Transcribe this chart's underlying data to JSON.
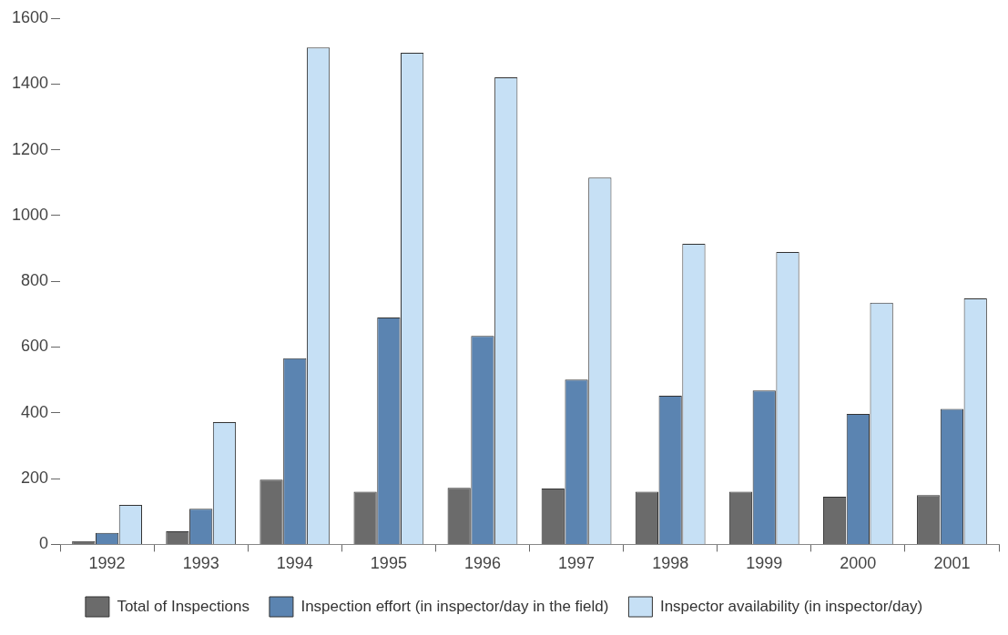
{
  "chart_data": {
    "type": "bar",
    "categories": [
      "1992",
      "1993",
      "1994",
      "1995",
      "1996",
      "1997",
      "1998",
      "1999",
      "2000",
      "2001"
    ],
    "series": [
      {
        "name": "Total of Inspections",
        "color": "#6b6b6b",
        "values": [
          10,
          40,
          197,
          160,
          172,
          170,
          160,
          160,
          145,
          150
        ]
      },
      {
        "name": "Inspection effort (in inspector/day in the field)",
        "color": "#5b84b1",
        "values": [
          35,
          108,
          566,
          690,
          634,
          501,
          452,
          468,
          397,
          412
        ]
      },
      {
        "name": "Inspector availability (in inspector/day)",
        "color": "#c6e0f5",
        "values": [
          120,
          372,
          1511,
          1495,
          1420,
          1115,
          914,
          889,
          735,
          748
        ]
      }
    ],
    "ylim": [
      0,
      1600
    ],
    "yticks": [
      0,
      200,
      400,
      600,
      800,
      1000,
      1200,
      1400,
      1600
    ],
    "grid": false,
    "legend": "bottom"
  }
}
